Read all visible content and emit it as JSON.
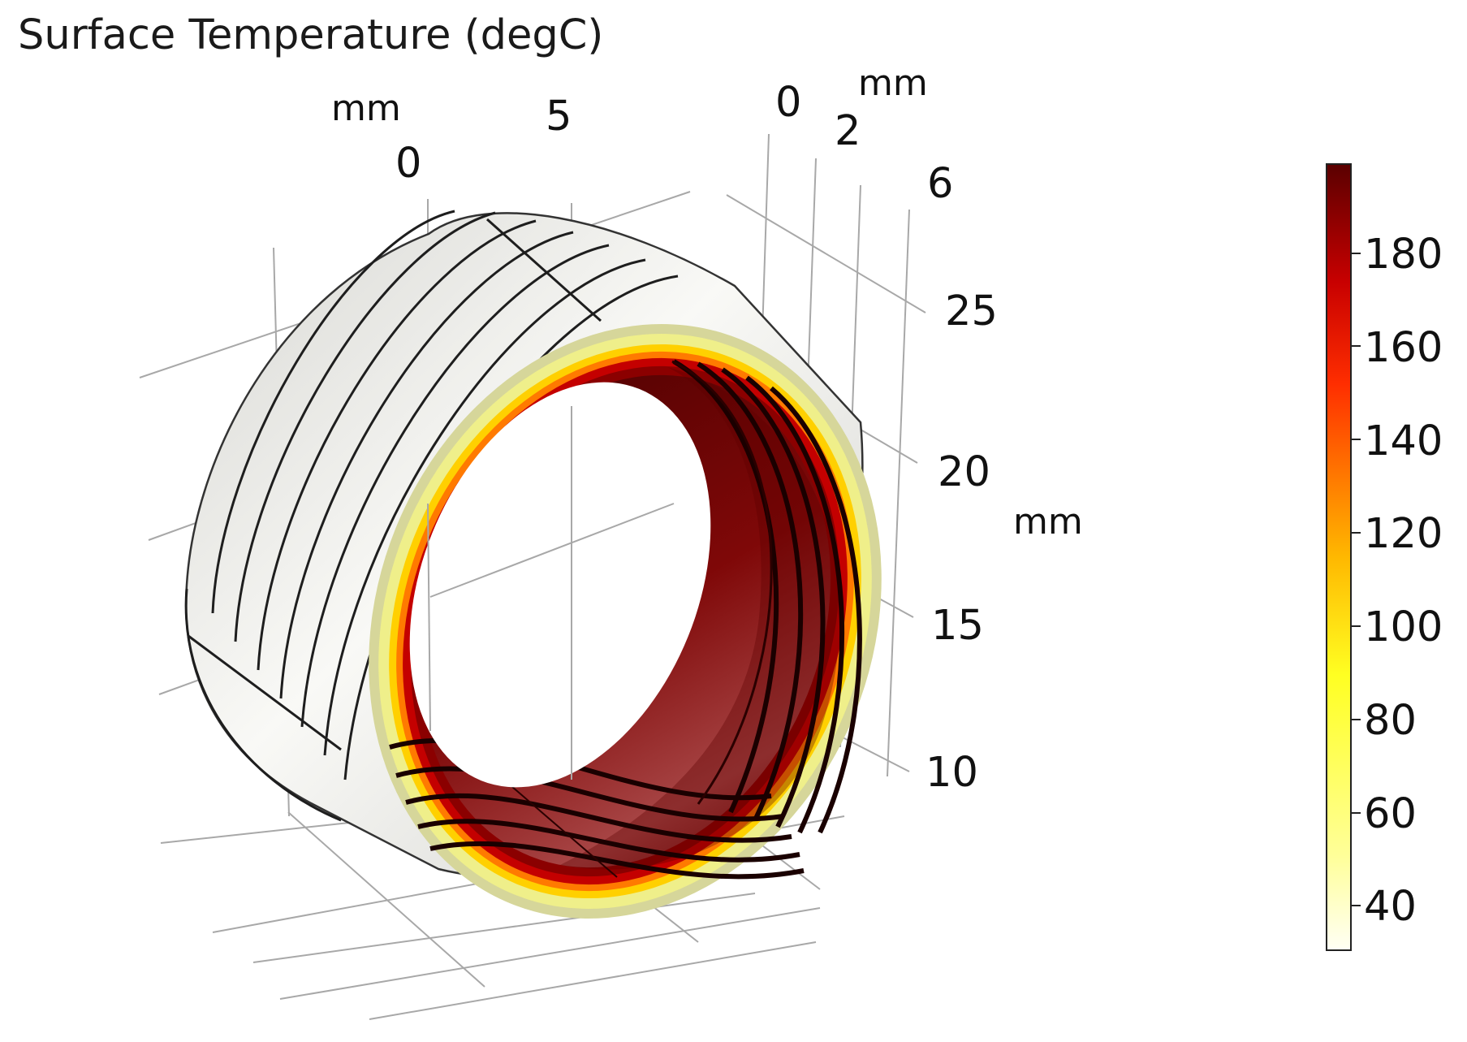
{
  "title": "Surface Temperature (degC)",
  "axes": {
    "x": {
      "unit": "mm",
      "ticks": [
        "0",
        "5"
      ]
    },
    "y": {
      "unit": "mm",
      "ticks": [
        "0",
        "2",
        "6"
      ]
    },
    "z": {
      "unit": "mm",
      "ticks": [
        "25",
        "20",
        "15",
        "10"
      ]
    }
  },
  "colorbar": {
    "label_ticks": [
      "180",
      "160",
      "140",
      "120",
      "100",
      "80",
      "60",
      "40"
    ],
    "min": 30,
    "max": 199,
    "colormap": [
      "#fffff5",
      "#ffff99",
      "#ffff33",
      "#ffcc00",
      "#ff8c00",
      "#ff3c00",
      "#d40000",
      "#8b0000",
      "#5c0000"
    ]
  },
  "colors": {
    "outer_surface": "#e4e4e0",
    "inner_surface": "#7a0b0b",
    "edge_cool": "#e6e6a6",
    "edge_hot": "#8b0000"
  }
}
